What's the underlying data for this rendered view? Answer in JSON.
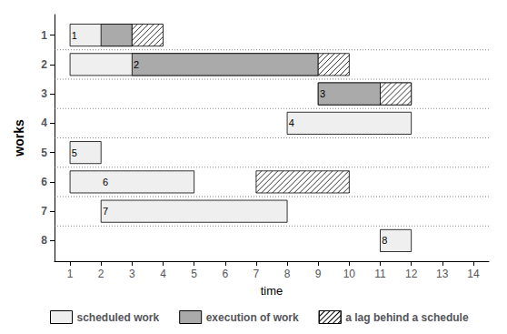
{
  "chart_data": {
    "type": "gantt",
    "orientation": "horizontal",
    "xlabel": "time",
    "ylabel": "works",
    "xlim": [
      0.5,
      14.5
    ],
    "ylim": [
      8.7,
      0.3
    ],
    "xticks": [
      1,
      2,
      3,
      4,
      5,
      6,
      7,
      8,
      9,
      10,
      11,
      12,
      13,
      14
    ],
    "yticks": [
      1,
      2,
      3,
      4,
      5,
      6,
      7,
      8
    ],
    "grid": true,
    "legend": "bottom",
    "series": [
      {
        "name": "scheduled work",
        "color": "#efefef",
        "values": [
          {
            "y": 1,
            "start": 1,
            "end": 3
          },
          {
            "y": 2,
            "start": 1,
            "end": 9
          },
          {
            "y": 3,
            "start": 9,
            "end": 12
          },
          {
            "y": 4,
            "start": 8,
            "end": 12
          },
          {
            "y": 5,
            "start": 1,
            "end": 2
          },
          {
            "y": 6,
            "start": 1,
            "end": 5
          },
          {
            "y": 7,
            "start": 2,
            "end": 8
          },
          {
            "y": 8,
            "start": 11,
            "end": 12
          }
        ]
      },
      {
        "name": "execution of work",
        "color": "#aaaaaa",
        "values": [
          {
            "y": 1,
            "start": 2,
            "end": 3
          },
          {
            "y": 2,
            "start": 3,
            "end": 9
          },
          {
            "y": 3,
            "start": 9,
            "end": 11
          }
        ]
      },
      {
        "name": "a lag behind a schedule",
        "color": "white",
        "values": [
          {
            "y": 1,
            "start": 3,
            "end": 4
          },
          {
            "y": 2,
            "start": 9,
            "end": 10
          },
          {
            "y": 3,
            "start": 11,
            "end": 12
          },
          {
            "y": 6,
            "start": 7,
            "end": 10
          }
        ]
      }
    ],
    "annotations": [
      {
        "text": "1",
        "x": 1.05,
        "y": 1
      },
      {
        "text": "2",
        "x": 3.05,
        "y": 2
      },
      {
        "text": "3",
        "x": 9.05,
        "y": 3
      },
      {
        "text": "4",
        "x": 8.05,
        "y": 4
      },
      {
        "text": "5",
        "x": 1.05,
        "y": 5
      },
      {
        "text": "6",
        "x": 2.05,
        "y": 6
      },
      {
        "text": "7",
        "x": 2.05,
        "y": 7
      },
      {
        "text": "8",
        "x": 11.05,
        "y": 8
      }
    ]
  }
}
